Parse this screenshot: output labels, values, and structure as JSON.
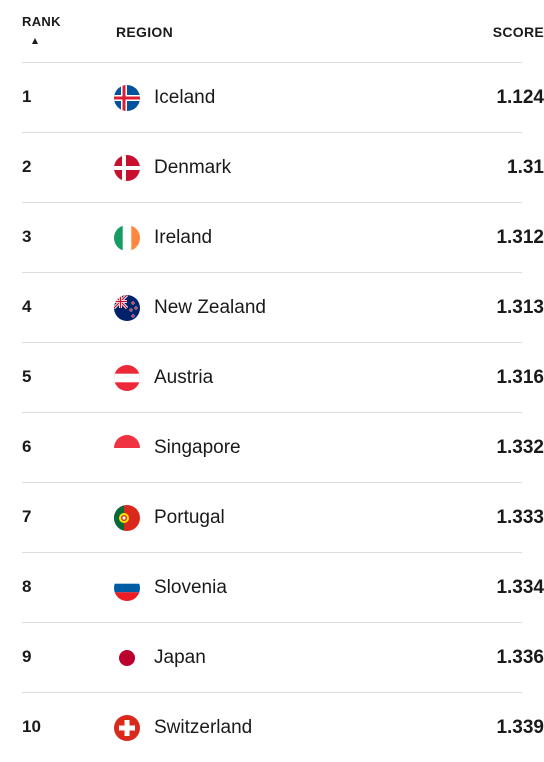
{
  "table": {
    "headers": {
      "rank": "RANK",
      "region": "REGION",
      "score": "SCORE"
    },
    "sort": {
      "column": "rank",
      "direction": "ascending"
    },
    "rows": [
      {
        "rank": "1",
        "region": "Iceland",
        "score": "1.124",
        "flag_icon": "iceland-flag-icon"
      },
      {
        "rank": "2",
        "region": "Denmark",
        "score": "1.31",
        "flag_icon": "denmark-flag-icon"
      },
      {
        "rank": "3",
        "region": "Ireland",
        "score": "1.312",
        "flag_icon": "ireland-flag-icon"
      },
      {
        "rank": "4",
        "region": "New Zealand",
        "score": "1.313",
        "flag_icon": "new-zealand-flag-icon"
      },
      {
        "rank": "5",
        "region": "Austria",
        "score": "1.316",
        "flag_icon": "austria-flag-icon"
      },
      {
        "rank": "6",
        "region": "Singapore",
        "score": "1.332",
        "flag_icon": "singapore-flag-icon"
      },
      {
        "rank": "7",
        "region": "Portugal",
        "score": "1.333",
        "flag_icon": "portugal-flag-icon"
      },
      {
        "rank": "8",
        "region": "Slovenia",
        "score": "1.334",
        "flag_icon": "slovenia-flag-icon"
      },
      {
        "rank": "9",
        "region": "Japan",
        "score": "1.336",
        "flag_icon": "japan-flag-icon"
      },
      {
        "rank": "10",
        "region": "Switzerland",
        "score": "1.339",
        "flag_icon": "switzerland-flag-icon"
      }
    ]
  }
}
